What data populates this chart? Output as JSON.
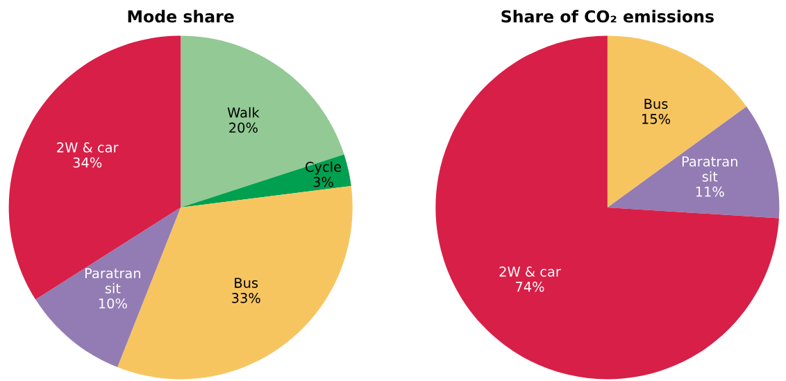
{
  "chart_data": [
    {
      "type": "pie",
      "title": "Mode share",
      "categories": [
        "Walk",
        "Cycle",
        "Bus",
        "Paratran\nsit",
        "2W & car"
      ],
      "values": [
        20,
        3,
        33,
        10,
        34
      ],
      "value_labels": [
        "20%",
        "3%",
        "33%",
        "10%",
        "34%"
      ],
      "colors": [
        "#93c994",
        "#00a050",
        "#f7c560",
        "#937cb3",
        "#d81f47"
      ]
    },
    {
      "type": "pie",
      "title": "Share of CO₂ emissions",
      "categories": [
        "Bus",
        "Paratran\nsit",
        "2W & car"
      ],
      "values": [
        15,
        11,
        74
      ],
      "value_labels": [
        "15%",
        "11%",
        "74%"
      ],
      "colors": [
        "#f7c560",
        "#937cb3",
        "#d81f47"
      ]
    }
  ]
}
